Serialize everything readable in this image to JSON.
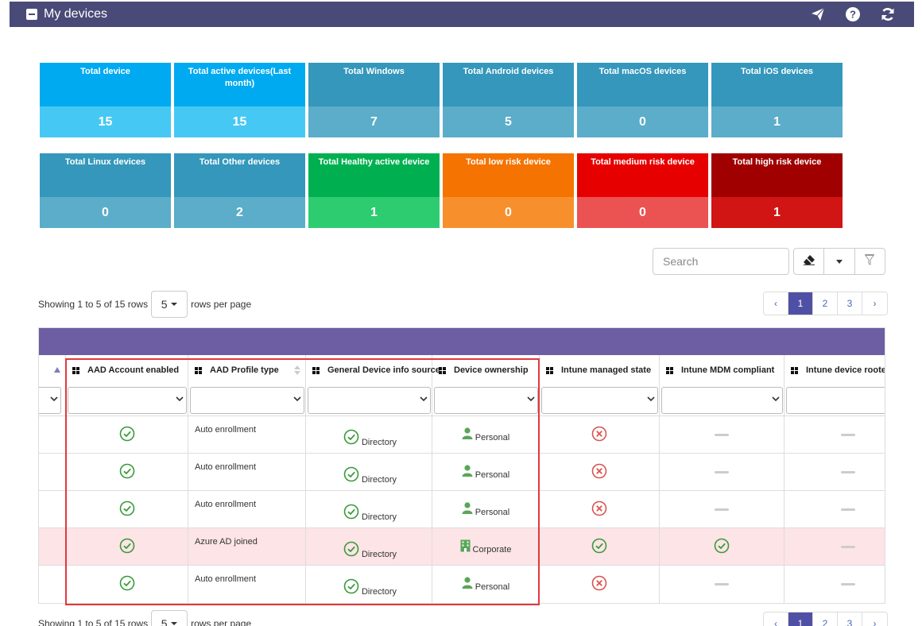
{
  "header": {
    "title": "My devices"
  },
  "tiles": [
    {
      "label": "Total device",
      "value": "15",
      "top_color": "#00aaf0",
      "bottom_color": "#46c8f5"
    },
    {
      "label": "Total active devices(Last month)",
      "value": "15",
      "top_color": "#00aaf0",
      "bottom_color": "#46c8f5"
    },
    {
      "label": "Total Windows",
      "value": "7",
      "top_color": "#3497bb",
      "bottom_color": "#5badc9"
    },
    {
      "label": "Total Android devices",
      "value": "5",
      "top_color": "#3497bb",
      "bottom_color": "#5badc9"
    },
    {
      "label": "Total macOS devices",
      "value": "0",
      "top_color": "#3497bb",
      "bottom_color": "#5badc9"
    },
    {
      "label": "Total iOS devices",
      "value": "1",
      "top_color": "#3497bb",
      "bottom_color": "#5badc9"
    },
    {
      "label": "Total Linux devices",
      "value": "0",
      "top_color": "#3497bb",
      "bottom_color": "#5badc9"
    },
    {
      "label": "Total Other devices",
      "value": "2",
      "top_color": "#3497bb",
      "bottom_color": "#5badc9"
    },
    {
      "label": "Total Healthy active device",
      "value": "1",
      "top_color": "#00b050",
      "bottom_color": "#2ecc71"
    },
    {
      "label": "Total low risk device",
      "value": "0",
      "top_color": "#f57300",
      "bottom_color": "#f7902c"
    },
    {
      "label": "Total medium risk device",
      "value": "0",
      "top_color": "#e60000",
      "bottom_color": "#eb5252"
    },
    {
      "label": "Total high risk device",
      "value": "1",
      "top_color": "#a00000",
      "bottom_color": "#d11414"
    }
  ],
  "toolbar": {
    "search_placeholder": "Search"
  },
  "pagination": {
    "showing_text": "Showing 1 to 5 of 15 rows",
    "rows_per_page": "5",
    "rows_per_page_suffix": "rows per page",
    "prev": "‹",
    "pages": [
      "1",
      "2",
      "3"
    ],
    "next": "›",
    "active_page": "1"
  },
  "table": {
    "columns": [
      "AAD Account enabled",
      "AAD Profile type",
      "General Device info source",
      "Device ownership",
      "Intune managed state",
      "Intune MDM compliant",
      "Intune device rooted"
    ],
    "rows": [
      {
        "aad_enabled": "check",
        "profile_type": "Auto enrollment",
        "info_source": "Directory",
        "ownership": "Personal",
        "ownership_icon": "person-icon",
        "intune_managed": "cross",
        "mdm_compliant": "dash",
        "rooted": "dash",
        "highlight": false
      },
      {
        "aad_enabled": "check",
        "profile_type": "Auto enrollment",
        "info_source": "Directory",
        "ownership": "Personal",
        "ownership_icon": "person-icon",
        "intune_managed": "cross",
        "mdm_compliant": "dash",
        "rooted": "dash",
        "highlight": false
      },
      {
        "aad_enabled": "check",
        "profile_type": "Auto enrollment",
        "info_source": "Directory",
        "ownership": "Personal",
        "ownership_icon": "person-icon",
        "intune_managed": "cross",
        "mdm_compliant": "dash",
        "rooted": "dash",
        "highlight": false
      },
      {
        "aad_enabled": "check",
        "profile_type": "Azure AD joined",
        "info_source": "Directory",
        "ownership": "Corporate",
        "ownership_icon": "building-icon",
        "intune_managed": "check",
        "mdm_compliant": "check",
        "rooted": "dash",
        "highlight": true
      },
      {
        "aad_enabled": "check",
        "profile_type": "Auto enrollment",
        "info_source": "Directory",
        "ownership": "Personal",
        "ownership_icon": "person-icon",
        "intune_managed": "cross",
        "mdm_compliant": "dash",
        "rooted": "dash",
        "highlight": false
      }
    ]
  },
  "colors": {
    "header_bg": "#4a4a78",
    "table_band": "#6d5ea3",
    "check": "#3a9a3a",
    "cross": "#d9534f",
    "highlight_row": "#fde4e6",
    "annotation_box": "#e0393e"
  }
}
